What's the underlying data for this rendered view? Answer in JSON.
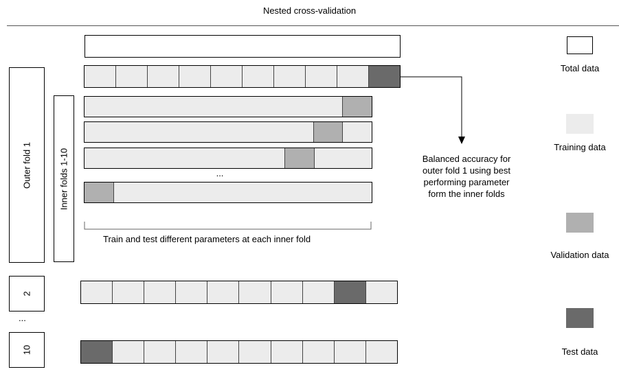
{
  "title": "Nested cross-validation",
  "colors": {
    "total": "#ffffff",
    "training": "#ececec",
    "validation": "#b0b0b0",
    "test": "#6a6a6a"
  },
  "outer": {
    "fold_label": "Outer fold 1",
    "inner_label": "Inner folds 1-10",
    "fold_2_label": "2",
    "fold_10_label": "10",
    "ellipsis": "..."
  },
  "inner": {
    "ellipsis": "...",
    "caption": "Train and test different parameters at each inner fold"
  },
  "result": {
    "line1": "Balanced accuracy for",
    "line2": "outer fold 1 using best",
    "line3": "performing parameter",
    "line4": "form the inner folds"
  },
  "legend": {
    "total": "Total data",
    "training": "Training data",
    "validation": "Validation data",
    "test": "Test data"
  },
  "folds": {
    "outer_fold_1_test_index": 9,
    "outer_fold_2_test_index": 8,
    "outer_fold_10_test_index": 0,
    "inner_validation_indices": [
      9,
      8,
      7,
      0
    ]
  }
}
